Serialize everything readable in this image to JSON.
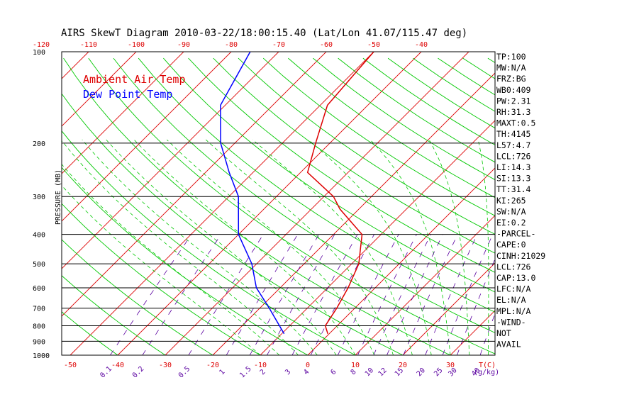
{
  "chart_data": {
    "type": "line",
    "title": "AIRS SkewT Diagram 2010-03-22/18:00:15.40 (Lat/Lon 41.07/115.47 deg)",
    "ylabel": "PRESSURE (MB)",
    "xlabel": "T(C)",
    "mixing_ratio_label": "(g/kg)",
    "ylim": [
      1000,
      100
    ],
    "xlim": [
      -50,
      40
    ],
    "pressure_ticks": [
      100,
      200,
      300,
      400,
      500,
      600,
      700,
      800,
      900,
      1000
    ],
    "bottom_temp_ticks": [
      -50,
      -40,
      -30,
      -20,
      -10,
      0,
      10,
      20,
      30
    ],
    "top_temp_ticks": [
      -120,
      -110,
      -100,
      -90,
      -80,
      -70,
      -60,
      -50,
      -40
    ],
    "mixing_ratio_ticks": [
      "0.1",
      "0.2",
      "0.5",
      "1",
      "1.5",
      "2",
      "3",
      "4",
      "6",
      "8",
      "10",
      "12",
      "15",
      "20",
      "25",
      "30",
      "40"
    ],
    "legend": [
      {
        "label": "Ambient Air Temp",
        "color": "#dd0000"
      },
      {
        "label": "Dew Point Temp",
        "color": "#0000ff"
      }
    ],
    "colors": {
      "isotherm": "#dd0000",
      "dry_adiabat": "#00c800",
      "moist_adiabat": "#00c800",
      "mixing_ratio": "#5a00a0",
      "isobar": "#000000"
    },
    "series": [
      {
        "name": "Ambient Air Temp",
        "points": [
          [
            850,
            -0.3
          ],
          [
            800,
            -2.5
          ],
          [
            700,
            -3.8
          ],
          [
            600,
            -5.7
          ],
          [
            500,
            -8.5
          ],
          [
            400,
            -14
          ],
          [
            330,
            -24
          ],
          [
            300,
            -28
          ],
          [
            250,
            -38.5
          ],
          [
            200,
            -43
          ],
          [
            150,
            -48.5
          ],
          [
            100,
            -50
          ]
        ]
      },
      {
        "name": "Dew Point Temp",
        "points": [
          [
            850,
            -9.5
          ],
          [
            700,
            -18
          ],
          [
            600,
            -25
          ],
          [
            500,
            -31
          ],
          [
            400,
            -40
          ],
          [
            300,
            -48
          ],
          [
            250,
            -55
          ],
          [
            200,
            -63
          ],
          [
            150,
            -71
          ],
          [
            100,
            -76
          ]
        ]
      }
    ],
    "indices": [
      "TP:100",
      "MW:N/A",
      "FRZ:BG",
      "WB0:409",
      "PW:2.31",
      "RH:31.3",
      "MAXT:0.5",
      "TH:4145",
      "L57:4.7",
      "LCL:726",
      "LI:14.3",
      "SI:13.3",
      "TT:31.4",
      "KI:265",
      "SW:N/A",
      "EI:0.2",
      "-PARCEL-",
      "CAPE:0",
      "CINH:21029",
      "LCL:726",
      "CAP:13.0",
      "LFC:N/A",
      "EL:N/A",
      "MPL:N/A",
      "-WIND-",
      "NOT",
      "AVAIL"
    ]
  }
}
